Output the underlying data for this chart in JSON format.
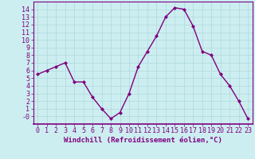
{
  "x": [
    0,
    1,
    2,
    3,
    4,
    5,
    6,
    7,
    8,
    9,
    10,
    11,
    12,
    13,
    14,
    15,
    16,
    17,
    18,
    19,
    20,
    21,
    22,
    23
  ],
  "y": [
    5.5,
    6.0,
    6.5,
    7.0,
    4.5,
    4.5,
    2.5,
    1.0,
    -0.3,
    0.5,
    3.0,
    6.5,
    8.5,
    10.5,
    13.0,
    14.2,
    14.0,
    11.8,
    8.5,
    8.0,
    5.5,
    4.0,
    2.0,
    -0.3
  ],
  "line_color": "#800080",
  "marker": "D",
  "marker_size": 2,
  "background_color": "#cceef0",
  "grid_color": "#b0d8dc",
  "xlabel": "Windchill (Refroidissement éolien,°C)",
  "tick_color": "#800080",
  "label_color": "#800080",
  "ylim": [
    -1,
    15
  ],
  "xlim": [
    -0.5,
    23.5
  ],
  "yticks": [
    0,
    1,
    2,
    3,
    4,
    5,
    6,
    7,
    8,
    9,
    10,
    11,
    12,
    13,
    14
  ],
  "xticks": [
    0,
    1,
    2,
    3,
    4,
    5,
    6,
    7,
    8,
    9,
    10,
    11,
    12,
    13,
    14,
    15,
    16,
    17,
    18,
    19,
    20,
    21,
    22,
    23
  ],
  "line_width": 1.0,
  "tick_fontsize": 6,
  "label_fontsize": 6.5
}
